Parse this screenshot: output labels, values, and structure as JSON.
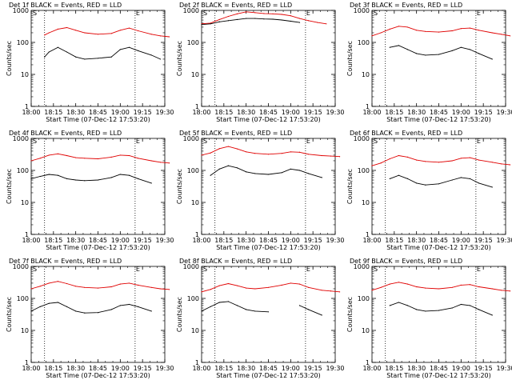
{
  "colors": {
    "events": "#000000",
    "lld": "#e00000",
    "axes": "#000000",
    "background": "#ffffff"
  },
  "chart_data": [
    {
      "type": "line",
      "title": "Det 1f BLACK = Events, RED = LLD",
      "xlabel": "Start Time (07-Dec-12 17:53:20)",
      "ylabel": "Counts/sec",
      "yscale": "log",
      "ylim": [
        1,
        1000
      ],
      "y_ticks": [
        "1",
        "10",
        "100",
        "1000"
      ],
      "x_ticks": [
        "18:00",
        "18:15",
        "18:30",
        "18:45",
        "19:00",
        "19:15",
        "19:30"
      ],
      "x": [
        18.15,
        18.2,
        18.3,
        18.4,
        18.5,
        18.6,
        18.75,
        18.9,
        19.0,
        19.1,
        19.2,
        19.35,
        19.45,
        19.55
      ],
      "markers": [
        "S",
        "E"
      ],
      "marker_times": [
        "18:09",
        "19:10"
      ],
      "series": [
        {
          "name": "LLD",
          "color": "#e00000",
          "values": [
            170,
            200,
            260,
            290,
            240,
            200,
            180,
            190,
            240,
            280,
            230,
            180,
            160,
            150
          ]
        },
        {
          "name": "Events",
          "color": "#000000",
          "values": [
            35,
            50,
            70,
            50,
            35,
            30,
            32,
            35,
            60,
            70,
            55,
            40,
            30,
            null
          ]
        }
      ]
    },
    {
      "type": "line",
      "title": "Det 2f BLACK = Events, RED = LLD",
      "xlabel": "Start Time (07-Dec-12 17:53:20)",
      "ylabel": "Counts/sec",
      "yscale": "log",
      "ylim": [
        1,
        1000
      ],
      "y_ticks": [
        "1",
        "10",
        "100",
        "1000"
      ],
      "x_ticks": [
        "18:00",
        "18:15",
        "18:30",
        "18:45",
        "19:00",
        "19:15",
        "19:30"
      ],
      "x": [
        18.0,
        18.1,
        18.2,
        18.3,
        18.4,
        18.5,
        18.6,
        18.7,
        18.8,
        18.9,
        19.0,
        19.1,
        19.2,
        19.3,
        19.4
      ],
      "markers": [
        "S",
        "E"
      ],
      "marker_times": [
        "18:09",
        "19:10"
      ],
      "series": [
        {
          "name": "LLD",
          "color": "#e00000",
          "values": [
            380,
            400,
            520,
            650,
            780,
            900,
            850,
            800,
            780,
            750,
            680,
            560,
            480,
            420,
            380
          ]
        },
        {
          "name": "Events",
          "color": "#000000",
          "values": [
            360,
            380,
            440,
            480,
            520,
            560,
            560,
            540,
            530,
            500,
            460,
            420,
            null,
            null,
            null
          ]
        }
      ]
    },
    {
      "type": "line",
      "title": "Det 3f BLACK = Events, RED = LLD",
      "xlabel": "Start Time (07-Dec-12 17:53:20)",
      "ylabel": "Counts/sec",
      "yscale": "log",
      "ylim": [
        1,
        1000
      ],
      "y_ticks": [
        "1",
        "10",
        "100",
        "1000"
      ],
      "x_ticks": [
        "18:00",
        "18:15",
        "18:30",
        "18:45",
        "19:00",
        "19:15",
        "19:30"
      ],
      "x": [
        18.0,
        18.1,
        18.2,
        18.3,
        18.4,
        18.5,
        18.6,
        18.75,
        18.9,
        19.0,
        19.1,
        19.2,
        19.35,
        19.45,
        19.55
      ],
      "markers": [
        "S",
        "E"
      ],
      "marker_times": [
        "18:09",
        "19:10"
      ],
      "series": [
        {
          "name": "LLD",
          "color": "#e00000",
          "values": [
            160,
            200,
            260,
            320,
            300,
            240,
            220,
            210,
            230,
            270,
            280,
            240,
            200,
            180,
            160
          ]
        },
        {
          "name": "Events",
          "color": "#000000",
          "values": [
            null,
            null,
            70,
            80,
            60,
            45,
            40,
            42,
            55,
            70,
            60,
            45,
            30,
            null,
            null
          ]
        }
      ]
    },
    {
      "type": "line",
      "title": "Det 4f BLACK = Events, RED = LLD",
      "xlabel": "Start Time (07-Dec-12 17:53:20)",
      "ylabel": "Counts/sec",
      "yscale": "log",
      "ylim": [
        1,
        1000
      ],
      "y_ticks": [
        "1",
        "10",
        "100",
        "1000"
      ],
      "x_ticks": [
        "18:00",
        "18:15",
        "18:30",
        "18:45",
        "19:00",
        "19:15",
        "19:30"
      ],
      "x": [
        18.0,
        18.1,
        18.2,
        18.3,
        18.4,
        18.5,
        18.6,
        18.75,
        18.9,
        19.0,
        19.1,
        19.2,
        19.35,
        19.45,
        19.55
      ],
      "markers": [
        "S",
        "E"
      ],
      "marker_times": [
        "18:09",
        "19:10"
      ],
      "series": [
        {
          "name": "LLD",
          "color": "#e00000",
          "values": [
            200,
            240,
            300,
            330,
            290,
            250,
            240,
            230,
            260,
            300,
            290,
            240,
            200,
            180,
            170
          ]
        },
        {
          "name": "Events",
          "color": "#000000",
          "values": [
            55,
            65,
            75,
            70,
            55,
            50,
            48,
            50,
            60,
            75,
            70,
            55,
            40,
            null,
            null
          ]
        }
      ]
    },
    {
      "type": "line",
      "title": "Det 5f BLACK = Events, RED = LLD",
      "xlabel": "Start Time (07-Dec-12 17:53:20)",
      "ylabel": "Counts/sec",
      "yscale": "log",
      "ylim": [
        1,
        1000
      ],
      "y_ticks": [
        "1",
        "10",
        "100",
        "1000"
      ],
      "x_ticks": [
        "18:00",
        "18:15",
        "18:30",
        "18:45",
        "19:00",
        "19:15",
        "19:30"
      ],
      "x": [
        18.0,
        18.1,
        18.2,
        18.3,
        18.4,
        18.5,
        18.6,
        18.75,
        18.9,
        19.0,
        19.1,
        19.2,
        19.35,
        19.45,
        19.55
      ],
      "markers": [
        "S",
        "E"
      ],
      "marker_times": [
        "18:09",
        "19:10"
      ],
      "series": [
        {
          "name": "LLD",
          "color": "#e00000",
          "values": [
            300,
            350,
            480,
            560,
            470,
            380,
            340,
            320,
            340,
            380,
            370,
            320,
            290,
            280,
            270
          ]
        },
        {
          "name": "Events",
          "color": "#000000",
          "values": [
            null,
            70,
            110,
            140,
            120,
            90,
            80,
            75,
            85,
            110,
            100,
            80,
            60,
            null,
            null
          ]
        }
      ]
    },
    {
      "type": "line",
      "title": "Det 6f BLACK = Events, RED = LLD",
      "xlabel": "Start Time (07-Dec-12 17:53:20)",
      "ylabel": "Counts/sec",
      "yscale": "log",
      "ylim": [
        1,
        1000
      ],
      "y_ticks": [
        "1",
        "10",
        "100",
        "1000"
      ],
      "x_ticks": [
        "18:00",
        "18:15",
        "18:30",
        "18:45",
        "19:00",
        "19:15",
        "19:30"
      ],
      "x": [
        18.0,
        18.1,
        18.2,
        18.3,
        18.4,
        18.5,
        18.6,
        18.75,
        18.9,
        19.0,
        19.1,
        19.2,
        19.35,
        19.45,
        19.55
      ],
      "markers": [
        "S",
        "E"
      ],
      "marker_times": [
        "18:09",
        "19:10"
      ],
      "series": [
        {
          "name": "LLD",
          "color": "#e00000",
          "values": [
            140,
            170,
            230,
            290,
            260,
            210,
            190,
            180,
            200,
            240,
            250,
            210,
            180,
            160,
            150
          ]
        },
        {
          "name": "Events",
          "color": "#000000",
          "values": [
            null,
            null,
            55,
            70,
            55,
            40,
            35,
            38,
            50,
            60,
            55,
            40,
            30,
            null,
            null
          ]
        }
      ]
    },
    {
      "type": "line",
      "title": "Det 7f BLACK = Events, RED = LLD",
      "xlabel": "Start Time (07-Dec-12 17:53:20)",
      "ylabel": "Counts/sec",
      "yscale": "log",
      "ylim": [
        1,
        1000
      ],
      "y_ticks": [
        "1",
        "10",
        "100",
        "1000"
      ],
      "x_ticks": [
        "18:00",
        "18:15",
        "18:30",
        "18:45",
        "19:00",
        "19:15",
        "19:30"
      ],
      "x": [
        18.0,
        18.1,
        18.2,
        18.3,
        18.4,
        18.5,
        18.6,
        18.75,
        18.9,
        19.0,
        19.1,
        19.2,
        19.35,
        19.45,
        19.55
      ],
      "markers": [
        "S",
        "E"
      ],
      "marker_times": [
        "18:09",
        "19:10"
      ],
      "series": [
        {
          "name": "LLD",
          "color": "#e00000",
          "values": [
            200,
            240,
            300,
            340,
            290,
            240,
            220,
            210,
            230,
            280,
            300,
            260,
            220,
            200,
            190
          ]
        },
        {
          "name": "Events",
          "color": "#000000",
          "values": [
            40,
            55,
            70,
            75,
            55,
            40,
            35,
            36,
            45,
            60,
            65,
            55,
            40,
            null,
            null
          ]
        }
      ]
    },
    {
      "type": "line",
      "title": "Det 8f BLACK = Events, RED = LLD",
      "xlabel": "Start Time (07-Dec-12 17:53:20)",
      "ylabel": "Counts/sec",
      "yscale": "log",
      "ylim": [
        1,
        1000
      ],
      "y_ticks": [
        "1",
        "10",
        "100",
        "1000"
      ],
      "x_ticks": [
        "18:00",
        "18:15",
        "18:30",
        "18:45",
        "19:00",
        "19:15",
        "19:30"
      ],
      "x": [
        18.0,
        18.1,
        18.2,
        18.3,
        18.4,
        18.5,
        18.6,
        18.75,
        18.9,
        19.0,
        19.1,
        19.2,
        19.35,
        19.45,
        19.55
      ],
      "markers": [
        "S",
        "E"
      ],
      "marker_times": [
        "18:09",
        "19:10"
      ],
      "series": [
        {
          "name": "LLD",
          "color": "#e00000",
          "values": [
            160,
            190,
            250,
            290,
            250,
            210,
            200,
            220,
            260,
            300,
            280,
            220,
            180,
            170,
            160
          ]
        },
        {
          "name": "Events",
          "color": "#000000",
          "values": [
            40,
            55,
            75,
            80,
            60,
            45,
            40,
            38,
            null,
            null,
            60,
            45,
            30,
            null,
            null
          ]
        }
      ]
    },
    {
      "type": "line",
      "title": "Det 9f BLACK = Events, RED = LLD",
      "xlabel": "Start Time (07-Dec-12 17:53:20)",
      "ylabel": "Counts/sec",
      "yscale": "log",
      "ylim": [
        1,
        1000
      ],
      "y_ticks": [
        "1",
        "10",
        "100",
        "1000"
      ],
      "x_ticks": [
        "18:00",
        "18:15",
        "18:30",
        "18:45",
        "19:00",
        "19:15",
        "19:30"
      ],
      "x": [
        18.0,
        18.1,
        18.2,
        18.3,
        18.4,
        18.5,
        18.6,
        18.75,
        18.9,
        19.0,
        19.1,
        19.2,
        19.35,
        19.45,
        19.55
      ],
      "markers": [
        "S",
        "E"
      ],
      "marker_times": [
        "18:09",
        "19:10"
      ],
      "series": [
        {
          "name": "LLD",
          "color": "#e00000",
          "values": [
            180,
            220,
            280,
            320,
            280,
            230,
            210,
            200,
            220,
            260,
            270,
            230,
            200,
            180,
            170
          ]
        },
        {
          "name": "Events",
          "color": "#000000",
          "values": [
            null,
            null,
            60,
            75,
            60,
            45,
            40,
            42,
            50,
            65,
            60,
            45,
            30,
            null,
            null
          ]
        }
      ]
    }
  ]
}
